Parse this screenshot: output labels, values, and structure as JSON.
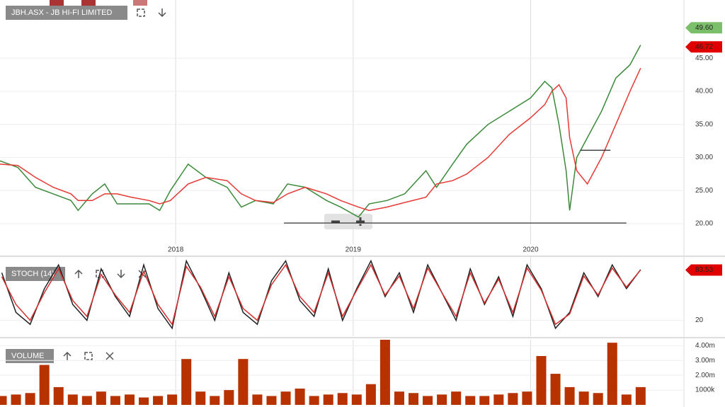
{
  "chart_data": [
    {
      "type": "line",
      "title": "JBH.ASX - JB HI-FI LIMITED",
      "x": [
        2017.01,
        2017.11,
        2017.21,
        2017.31,
        2017.41,
        2017.45,
        2017.53,
        2017.6,
        2017.67,
        2017.75,
        2017.85,
        2017.91,
        2017.97,
        2018.07,
        2018.17,
        2018.29,
        2018.37,
        2018.45,
        2018.55,
        2018.63,
        2018.73,
        2018.85,
        2018.93,
        2019.03,
        2019.09,
        2019.19,
        2019.29,
        2019.41,
        2019.47,
        2019.56,
        2019.64,
        2019.76,
        2019.88,
        2020.0,
        2020.08,
        2020.12,
        2020.16,
        2020.2,
        2020.22,
        2020.26,
        2020.32,
        2020.4,
        2020.48,
        2020.56,
        2020.62
      ],
      "series": [
        {
          "color": "#3a8a3a",
          "values": [
            29.5,
            28.5,
            25.5,
            24.5,
            23.5,
            22,
            24.5,
            26,
            23,
            23,
            23,
            22,
            25,
            29,
            27,
            25.5,
            22.5,
            23.5,
            23,
            26,
            25.5,
            23.5,
            22.5,
            21,
            23,
            23.5,
            24.5,
            28,
            25.5,
            29,
            32,
            35,
            37,
            39,
            41.5,
            40.5,
            35,
            28,
            22,
            30,
            33,
            37,
            42,
            44,
            47
          ]
        },
        {
          "color": "#e53935",
          "values": [
            29,
            28.8,
            27,
            25.5,
            24.5,
            23.5,
            23.5,
            24.5,
            24.5,
            24,
            23.5,
            23,
            23.5,
            26,
            27,
            26.5,
            24.5,
            23.5,
            23.2,
            24.5,
            25.5,
            24.5,
            23.5,
            22.5,
            22,
            22.5,
            23.2,
            24,
            26,
            26.5,
            27.5,
            30,
            33.5,
            36,
            38,
            40,
            41,
            39,
            33,
            28,
            26,
            30,
            35,
            40,
            43.5
          ]
        }
      ],
      "lines": [
        {
          "x": [
            2018.61,
            2020.54
          ],
          "y": 20.1
        },
        {
          "x": [
            2020.28,
            2020.45
          ],
          "y": 31.1
        }
      ],
      "xlim": [
        2017.01,
        2020.86
      ],
      "xticks": [
        2018,
        2019,
        2020
      ],
      "ylim": [
        16.9,
        53.8
      ],
      "yticks": [
        {
          "value": 20,
          "label": "20.00"
        },
        {
          "value": 25,
          "label": "25.00"
        },
        {
          "value": 30,
          "label": "30.00"
        },
        {
          "value": 35,
          "label": "35.00"
        },
        {
          "value": 40,
          "label": "40.00"
        },
        {
          "value": 45,
          "label": "45.00"
        }
      ],
      "price_tags": [
        {
          "value": 49.6,
          "label": "49.60",
          "color": "#7bbf6a"
        },
        {
          "value": 46.72,
          "label": "46.72",
          "color": "#e00000"
        }
      ]
    },
    {
      "type": "line",
      "title": "STOCH (14)",
      "x": [
        2017.02,
        2017.1,
        2017.18,
        2017.26,
        2017.34,
        2017.42,
        2017.5,
        2017.58,
        2017.66,
        2017.74,
        2017.82,
        2017.9,
        2017.98,
        2018.06,
        2018.14,
        2018.22,
        2018.3,
        2018.38,
        2018.46,
        2018.54,
        2018.62,
        2018.7,
        2018.78,
        2018.86,
        2018.94,
        2019.02,
        2019.1,
        2019.18,
        2019.26,
        2019.34,
        2019.42,
        2019.5,
        2019.58,
        2019.66,
        2019.74,
        2019.82,
        2019.9,
        2019.98,
        2020.06,
        2020.14,
        2020.22,
        2020.3,
        2020.38,
        2020.46,
        2020.54,
        2020.62
      ],
      "series": [
        {
          "color": "#222222",
          "values": [
            80,
            30,
            15,
            60,
            90,
            40,
            20,
            85,
            50,
            25,
            90,
            35,
            10,
            95,
            60,
            20,
            80,
            30,
            15,
            70,
            95,
            45,
            25,
            85,
            20,
            60,
            95,
            50,
            80,
            30,
            90,
            55,
            20,
            85,
            40,
            75,
            25,
            90,
            60,
            10,
            30,
            80,
            50,
            90,
            60,
            84
          ]
        },
        {
          "color": "#d32f2f",
          "values": [
            75,
            40,
            20,
            55,
            85,
            45,
            25,
            78,
            52,
            30,
            82,
            40,
            15,
            88,
            62,
            25,
            75,
            35,
            20,
            65,
            90,
            50,
            30,
            80,
            25,
            58,
            90,
            52,
            76,
            35,
            86,
            55,
            25,
            80,
            42,
            72,
            30,
            86,
            58,
            15,
            28,
            76,
            52,
            86,
            62,
            83.53
          ]
        }
      ],
      "xlim": [
        2017.01,
        2020.86
      ],
      "ylim": [
        0,
        100
      ],
      "yticks": [
        20
      ],
      "price_tags": [
        {
          "value": 83.53,
          "label": "83.53",
          "color": "#e00000"
        }
      ]
    },
    {
      "type": "bar",
      "title": "VOLUME",
      "x": [
        2017.02,
        2017.1,
        2017.18,
        2017.26,
        2017.34,
        2017.42,
        2017.5,
        2017.58,
        2017.66,
        2017.74,
        2017.82,
        2017.9,
        2017.98,
        2018.06,
        2018.14,
        2018.22,
        2018.3,
        2018.38,
        2018.46,
        2018.54,
        2018.62,
        2018.7,
        2018.78,
        2018.86,
        2018.94,
        2019.02,
        2019.1,
        2019.18,
        2019.26,
        2019.34,
        2019.42,
        2019.5,
        2019.58,
        2019.66,
        2019.74,
        2019.82,
        2019.9,
        2019.98,
        2020.06,
        2020.14,
        2020.22,
        2020.3,
        2020.38,
        2020.46,
        2020.54,
        2020.62
      ],
      "values": [
        0.6,
        0.7,
        0.8,
        2.7,
        1.2,
        0.7,
        0.6,
        0.9,
        0.6,
        0.7,
        0.5,
        0.6,
        0.7,
        3.1,
        0.9,
        0.6,
        1.0,
        3.1,
        0.7,
        0.6,
        0.9,
        1.1,
        0.6,
        0.7,
        0.8,
        0.7,
        1.4,
        4.4,
        0.9,
        0.8,
        0.6,
        0.7,
        0.9,
        0.6,
        0.6,
        0.7,
        0.8,
        0.9,
        3.3,
        2.1,
        1.2,
        0.9,
        0.8,
        4.2,
        0.7,
        1.2
      ],
      "color": "#b83200",
      "xlim": [
        2017.01,
        2020.86
      ],
      "ylim": [
        0,
        4.4
      ],
      "yticks": [
        {
          "value": 4,
          "label": "4.00m"
        },
        {
          "value": 3,
          "label": "3.00m"
        },
        {
          "value": 2,
          "label": "2.00m"
        },
        {
          "value": 1,
          "label": "1000k"
        }
      ]
    }
  ]
}
